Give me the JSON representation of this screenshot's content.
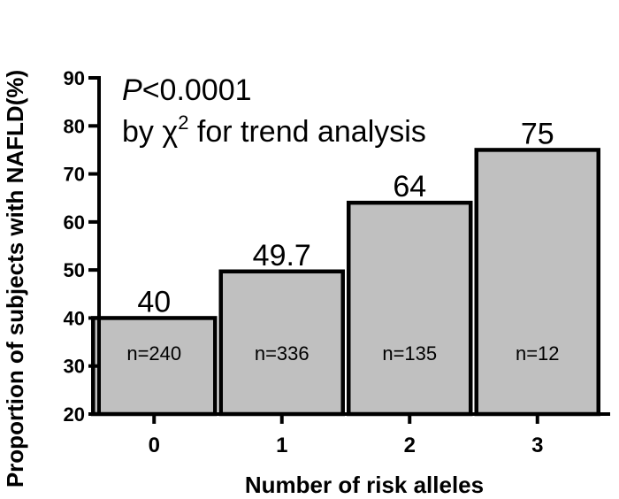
{
  "chart_data": {
    "type": "bar",
    "categories": [
      "0",
      "1",
      "2",
      "3"
    ],
    "values": [
      40,
      49.7,
      64,
      75
    ],
    "value_labels": [
      "40",
      "49.7",
      "64",
      "75"
    ],
    "n_labels": [
      "n=240",
      "n=336",
      "n=135",
      "n=12"
    ],
    "xlabel": "Number of risk alleles",
    "ylabel": "Proportion of subjects with NAFLD(%)",
    "ylim": [
      20,
      90
    ],
    "yticks": [
      20,
      30,
      40,
      50,
      60,
      70,
      80,
      90
    ],
    "ytick_labels": [
      "20",
      "30",
      "40",
      "50",
      "60",
      "70",
      "80",
      "90"
    ],
    "annotation": {
      "p_italic": "P",
      "p_value": "<0.0001",
      "line2_prefix": "by ",
      "chi": "χ",
      "chi_sup": "2",
      "line2_suffix": " for trend analysis"
    },
    "bar_color": "#c0c0c0",
    "grid": false
  }
}
